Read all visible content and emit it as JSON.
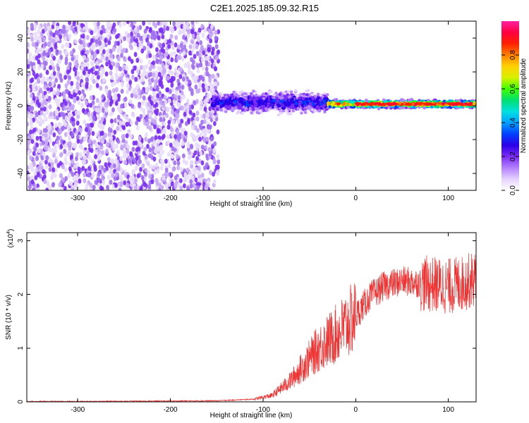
{
  "title": "C2E1.2025.185.09.32.R15",
  "chart_data": [
    {
      "type": "heatmap",
      "xlabel": "Height of straight line (km)",
      "ylabel": "Frequency (Hz)",
      "xlim": [
        -355,
        130
      ],
      "ylim": [
        -50,
        50
      ],
      "xticks": [
        -300,
        -200,
        -100,
        0,
        100
      ],
      "yticks": [
        -40,
        -20,
        0,
        20,
        40
      ],
      "colorbar": {
        "label": "Normalized spectral amplitude",
        "range": [
          0,
          1
        ],
        "ticks": [
          0.0,
          0.2,
          0.4,
          0.6,
          0.8
        ],
        "tick_labels": [
          "0.0",
          "0.2",
          "0.4",
          "0.6",
          "0.8"
        ],
        "colors": [
          "#ffffff",
          "#e6d2ff",
          "#b380ff",
          "#7b2cf5",
          "#2b00e8",
          "#0040ff",
          "#00a0ff",
          "#00e0e0",
          "#00e070",
          "#40ff00",
          "#d8f000",
          "#ffd000",
          "#ff8000",
          "#ff2000",
          "#ff0040",
          "#ff20a0"
        ]
      },
      "regions": [
        {
          "x_range": [
            -355,
            -148
          ],
          "freq_range": [
            -50,
            50
          ],
          "character": "broadband low-amplitude noise"
        },
        {
          "x_range": [
            -155,
            -30
          ],
          "center_freq": 2,
          "spread_hz": 8,
          "amplitude": 0.3
        },
        {
          "x_range": [
            -30,
            130
          ],
          "center_freq": 1,
          "spread_hz": 3,
          "amplitude": 0.85
        }
      ]
    },
    {
      "type": "line",
      "xlabel": "Height of straight line (km)",
      "ylabel": "SNR (10 * v/v)",
      "multiplier_label": "(x10",
      "multiplier_exp": "4",
      "xlim": [
        -355,
        130
      ],
      "ylim": [
        0,
        3.15
      ],
      "xticks": [
        -300,
        -200,
        -100,
        0,
        100
      ],
      "yticks": [
        0,
        1,
        2,
        3
      ],
      "color": "#ee3333",
      "envelope": [
        {
          "x": -355,
          "y": 0.0
        },
        {
          "x": -150,
          "y": 0.02
        },
        {
          "x": -110,
          "y": 0.05
        },
        {
          "x": -90,
          "y": 0.12
        },
        {
          "x": -70,
          "y": 0.4
        },
        {
          "x": -55,
          "y": 0.7
        },
        {
          "x": -40,
          "y": 1.0
        },
        {
          "x": -25,
          "y": 1.2
        },
        {
          "x": -15,
          "y": 1.35
        },
        {
          "x": 0,
          "y": 1.6
        },
        {
          "x": 15,
          "y": 1.95
        },
        {
          "x": 30,
          "y": 2.15
        },
        {
          "x": 50,
          "y": 2.25
        },
        {
          "x": 75,
          "y": 2.2
        },
        {
          "x": 100,
          "y": 2.15
        },
        {
          "x": 115,
          "y": 2.2
        },
        {
          "x": 130,
          "y": 2.3
        }
      ]
    }
  ]
}
